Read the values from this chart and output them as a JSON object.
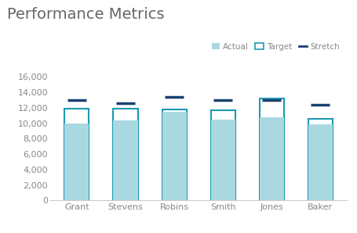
{
  "categories": [
    "Grant",
    "Stevens",
    "Robins",
    "Smith",
    "Jones",
    "Baker"
  ],
  "actual": [
    10000,
    10400,
    11500,
    10500,
    10800,
    9800
  ],
  "target": [
    11900,
    11900,
    11800,
    11700,
    13200,
    10600
  ],
  "stretch": [
    13000,
    12600,
    13400,
    13000,
    13000,
    12400
  ],
  "actual_color": "#aad8e0",
  "target_color": "#1b9ab5",
  "stretch_color": "#1a4070",
  "bg_color": "#ffffff",
  "title": "Performance Metrics",
  "title_fontsize": 14,
  "tick_fontsize": 8,
  "label_color": "#888888",
  "ylim": [
    0,
    17500
  ],
  "yticks": [
    0,
    2000,
    4000,
    6000,
    8000,
    10000,
    12000,
    14000,
    16000
  ],
  "bar_width": 0.5
}
